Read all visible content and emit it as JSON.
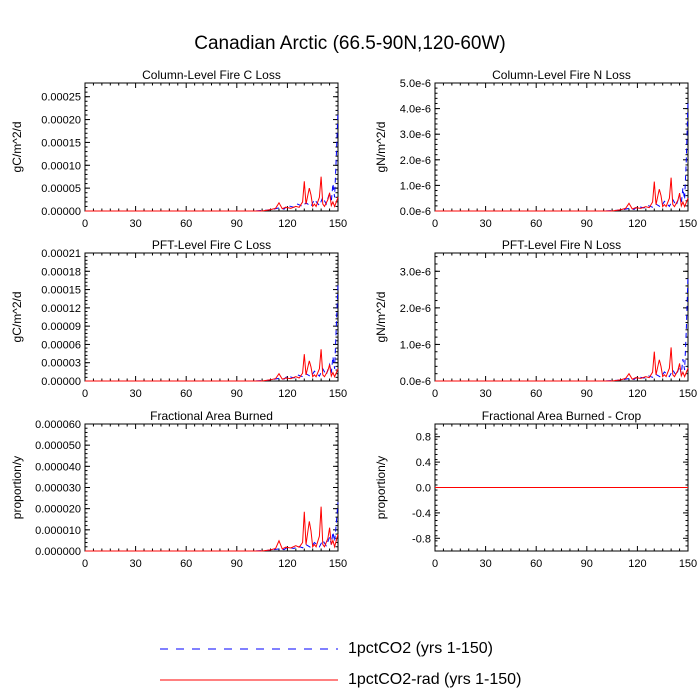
{
  "page_title": "Canadian Arctic (66.5-90N,120-60W)",
  "legend": [
    {
      "label": "1pctCO2 (yrs 1-150)",
      "color": "#0000ff",
      "dash": "dashed"
    },
    {
      "label": "1pctCO2-rad (yrs 1-150)",
      "color": "#ff0000",
      "dash": "solid"
    }
  ],
  "chart_data": [
    {
      "type": "line",
      "title": "Column-Level Fire C Loss",
      "ylabel": "gC/m^2/d",
      "xlim": [
        0,
        150
      ],
      "xticks": [
        0,
        30,
        60,
        90,
        120,
        150
      ],
      "ylim": [
        0,
        0.00028
      ],
      "yticks": [
        0,
        5e-05,
        0.0001,
        0.00015,
        0.0002,
        0.00025
      ],
      "yticklabels": [
        "0.00000",
        "0.00005",
        "0.00010",
        "0.00015",
        "0.00020",
        "0.00025"
      ],
      "series": [
        {
          "name": "1pctCO2 (yrs 1-150)",
          "x": [
            0,
            100,
            108,
            112,
            116,
            118,
            120,
            124,
            126,
            129,
            131,
            134,
            136,
            139,
            141,
            143,
            145,
            146,
            147,
            148,
            149,
            150
          ],
          "y": [
            0,
            0.0,
            2e-06,
            4e-06,
            8e-06,
            4e-06,
            1.2e-05,
            8e-06,
            1.5e-05,
            1e-05,
            1.8e-05,
            1e-05,
            2.5e-05,
            1.2e-05,
            3e-05,
            1.5e-05,
            4e-05,
            2e-05,
            6e-05,
            3e-05,
            0.00012,
            0.00022
          ]
        },
        {
          "name": "1pctCO2-rad (yrs 1-150)",
          "x": [
            0,
            105,
            110,
            113,
            115,
            117,
            119,
            122,
            125,
            127,
            129,
            130,
            131,
            133,
            134,
            135,
            136,
            137,
            139,
            140,
            141,
            142,
            144,
            145,
            146,
            147,
            148,
            150
          ],
          "y": [
            0,
            0.0,
            3e-06,
            6e-06,
            1.8e-05,
            5e-06,
            8e-06,
            6e-06,
            1e-05,
            8e-06,
            2e-05,
            6.5e-05,
            1.5e-05,
            5e-05,
            3.5e-05,
            1e-05,
            1.5e-05,
            1e-05,
            3e-05,
            7.5e-05,
            1.5e-05,
            1e-05,
            2.5e-05,
            4e-05,
            1.2e-05,
            2e-05,
            1e-05,
            3e-05
          ]
        }
      ]
    },
    {
      "type": "line",
      "title": "Column-Level Fire N Loss",
      "ylabel": "gN/m^2/d",
      "xlim": [
        0,
        150
      ],
      "xticks": [
        0,
        30,
        60,
        90,
        120,
        150
      ],
      "ylim": [
        0,
        5e-06
      ],
      "yticks": [
        0,
        1e-06,
        2e-06,
        3e-06,
        4e-06,
        5e-06
      ],
      "yticklabels": [
        "0.0e-6",
        "1.0e-6",
        "2.0e-6",
        "3.0e-6",
        "4.0e-6",
        "5.0e-6"
      ],
      "series": [
        {
          "name": "1pctCO2 (yrs 1-150)",
          "x": [
            0,
            100,
            108,
            112,
            116,
            118,
            120,
            124,
            126,
            129,
            131,
            134,
            136,
            139,
            141,
            143,
            145,
            146,
            147,
            148,
            149,
            150
          ],
          "y": [
            0,
            0.0,
            3e-08,
            6e-08,
            1.2e-07,
            6e-08,
            1.8e-07,
            1.2e-07,
            2.2e-07,
            1.5e-07,
            2.7e-07,
            1.5e-07,
            3.8e-07,
            1.8e-07,
            4.5e-07,
            2.2e-07,
            6e-07,
            3e-07,
            9e-07,
            4.5e-07,
            2e-06,
            4.3e-06
          ]
        },
        {
          "name": "1pctCO2-rad (yrs 1-150)",
          "x": [
            0,
            105,
            110,
            113,
            115,
            117,
            119,
            122,
            125,
            127,
            129,
            130,
            131,
            133,
            134,
            135,
            136,
            137,
            139,
            140,
            141,
            142,
            144,
            145,
            146,
            147,
            148,
            150
          ],
          "y": [
            0,
            0.0,
            5e-08,
            1e-07,
            3e-07,
            8e-08,
            1.3e-07,
            1e-07,
            1.7e-07,
            1.3e-07,
            3.5e-07,
            1.15e-06,
            2.5e-07,
            8.5e-07,
            6e-07,
            1.7e-07,
            2.5e-07,
            1.7e-07,
            5e-07,
            1.3e-06,
            2.5e-07,
            1.7e-07,
            4.2e-07,
            7e-07,
            2e-07,
            3.5e-07,
            1.7e-07,
            5e-07
          ]
        }
      ]
    },
    {
      "type": "line",
      "title": "PFT-Level Fire C Loss",
      "ylabel": "gC/m^2/d",
      "xlim": [
        0,
        150
      ],
      "xticks": [
        0,
        30,
        60,
        90,
        120,
        150
      ],
      "ylim": [
        0,
        0.00021
      ],
      "yticks": [
        0,
        3e-05,
        6e-05,
        9e-05,
        0.00012,
        0.00015,
        0.00018,
        0.00021
      ],
      "yticklabels": [
        "0.00000",
        "0.00003",
        "0.00006",
        "0.00009",
        "0.00012",
        "0.00015",
        "0.00018",
        "0.00021"
      ],
      "series": [
        {
          "name": "1pctCO2 (yrs 1-150)",
          "x": [
            0,
            100,
            108,
            112,
            116,
            118,
            120,
            124,
            126,
            129,
            131,
            134,
            136,
            139,
            141,
            143,
            145,
            146,
            147,
            148,
            149,
            150
          ],
          "y": [
            0,
            0.0,
            1e-06,
            3e-06,
            5e-06,
            3e-06,
            8e-06,
            5e-06,
            1e-05,
            7e-06,
            1.2e-05,
            7e-06,
            1.6e-05,
            8e-06,
            2e-05,
            1e-05,
            2.7e-05,
            1.3e-05,
            4e-05,
            2e-05,
            9e-05,
            0.00016
          ]
        },
        {
          "name": "1pctCO2-rad (yrs 1-150)",
          "x": [
            0,
            105,
            110,
            113,
            115,
            117,
            119,
            122,
            125,
            127,
            129,
            130,
            131,
            133,
            134,
            135,
            136,
            137,
            139,
            140,
            141,
            142,
            144,
            145,
            146,
            147,
            148,
            150
          ],
          "y": [
            0,
            0.0,
            2e-06,
            4e-06,
            1.2e-05,
            3e-06,
            5e-06,
            4e-06,
            7e-06,
            5e-06,
            1.3e-05,
            4.4e-05,
            1e-05,
            3.3e-05,
            2.3e-05,
            7e-06,
            1e-05,
            7e-06,
            2e-05,
            5.2e-05,
            1e-05,
            7e-06,
            1.7e-05,
            2.7e-05,
            8e-06,
            1.4e-05,
            7e-06,
            2e-05
          ]
        }
      ]
    },
    {
      "type": "line",
      "title": "PFT-Level Fire N Loss",
      "ylabel": "gN/m^2/d",
      "xlim": [
        0,
        150
      ],
      "xticks": [
        0,
        30,
        60,
        90,
        120,
        150
      ],
      "ylim": [
        0,
        3.5e-06
      ],
      "yticks": [
        0,
        1e-06,
        2e-06,
        3e-06
      ],
      "yticklabels": [
        "0.0e-6",
        "1.0e-6",
        "2.0e-6",
        "3.0e-6"
      ],
      "series": [
        {
          "name": "1pctCO2 (yrs 1-150)",
          "x": [
            0,
            100,
            108,
            112,
            116,
            118,
            120,
            124,
            126,
            129,
            131,
            134,
            136,
            139,
            141,
            143,
            145,
            146,
            147,
            148,
            149,
            150
          ],
          "y": [
            0,
            0.0,
            2e-08,
            4e-08,
            8e-08,
            4e-08,
            1.2e-07,
            8e-08,
            1.5e-07,
            1e-07,
            1.8e-07,
            1e-07,
            2.5e-07,
            1.2e-07,
            3e-07,
            1.5e-07,
            4e-07,
            2e-07,
            6e-07,
            3e-07,
            1.4e-06,
            2.9e-06
          ]
        },
        {
          "name": "1pctCO2-rad (yrs 1-150)",
          "x": [
            0,
            105,
            110,
            113,
            115,
            117,
            119,
            122,
            125,
            127,
            129,
            130,
            131,
            133,
            134,
            135,
            136,
            137,
            139,
            140,
            141,
            142,
            144,
            145,
            146,
            147,
            148,
            150
          ],
          "y": [
            0,
            0.0,
            3e-08,
            7e-08,
            2e-07,
            5e-08,
            9e-08,
            7e-08,
            1.2e-07,
            9e-08,
            2.4e-07,
            8e-07,
            1.7e-07,
            5.8e-07,
            4e-07,
            1.2e-07,
            1.7e-07,
            1.2e-07,
            3.5e-07,
            9.2e-07,
            1.7e-07,
            1.2e-07,
            2.9e-07,
            4.8e-07,
            1.4e-07,
            2.4e-07,
            1.2e-07,
            3.5e-07
          ]
        }
      ]
    },
    {
      "type": "line",
      "title": "Fractional Area Burned",
      "ylabel": "proportion/y",
      "xlim": [
        0,
        150
      ],
      "xticks": [
        0,
        30,
        60,
        90,
        120,
        150
      ],
      "ylim": [
        0,
        6e-05
      ],
      "yticks": [
        0,
        1e-05,
        2e-05,
        3e-05,
        4e-05,
        5e-05,
        6e-05
      ],
      "yticklabels": [
        "0.000000",
        "0.000010",
        "0.000020",
        "0.000030",
        "0.000040",
        "0.000050",
        "0.000060"
      ],
      "series": [
        {
          "name": "1pctCO2 (yrs 1-150)",
          "x": [
            0,
            100,
            108,
            112,
            116,
            118,
            120,
            124,
            126,
            129,
            131,
            134,
            136,
            139,
            141,
            143,
            145,
            146,
            147,
            148,
            149,
            150
          ],
          "y": [
            0,
            0.0,
            3e-07,
            6e-07,
            1.2e-06,
            6e-07,
            1.8e-06,
            1.2e-06,
            2.4e-06,
            1.5e-06,
            3e-06,
            1.6e-06,
            4e-06,
            2e-06,
            5e-06,
            2.5e-06,
            6.5e-06,
            3e-06,
            9e-06,
            4.5e-06,
            1.3e-05,
            2.3e-05
          ]
        },
        {
          "name": "1pctCO2-rad (yrs 1-150)",
          "x": [
            0,
            105,
            110,
            113,
            115,
            117,
            119,
            122,
            125,
            127,
            129,
            130,
            131,
            133,
            134,
            135,
            136,
            137,
            139,
            140,
            141,
            142,
            144,
            145,
            146,
            147,
            148,
            150
          ],
          "y": [
            0,
            0.0,
            5e-07,
            1.2e-06,
            4.8e-06,
            1e-06,
            1.8e-06,
            1.4e-06,
            2.5e-06,
            1.8e-06,
            4e-06,
            1.85e-05,
            3e-06,
            1.4e-05,
            9.5e-06,
            2e-06,
            3e-06,
            2e-06,
            7e-06,
            2.1e-05,
            3e-06,
            2e-06,
            6e-06,
            1.1e-05,
            3e-06,
            5e-06,
            2e-06,
            8e-06
          ]
        }
      ]
    },
    {
      "type": "line",
      "title": "Fractional Area Burned - Crop",
      "ylabel": "proportion/y",
      "xlim": [
        0,
        150
      ],
      "xticks": [
        0,
        30,
        60,
        90,
        120,
        150
      ],
      "ylim": [
        -1.0,
        1.0
      ],
      "yticks": [
        -0.8,
        -0.4,
        0.0,
        0.4,
        0.8
      ],
      "yticklabels": [
        "-0.8",
        "-0.4",
        "0.0",
        "0.4",
        "0.8"
      ],
      "series": [
        {
          "name": "1pctCO2 (yrs 1-150)",
          "x": [
            0,
            150
          ],
          "y": [
            0,
            0
          ]
        },
        {
          "name": "1pctCO2-rad (yrs 1-150)",
          "x": [
            0,
            150
          ],
          "y": [
            0,
            0
          ]
        }
      ]
    }
  ]
}
